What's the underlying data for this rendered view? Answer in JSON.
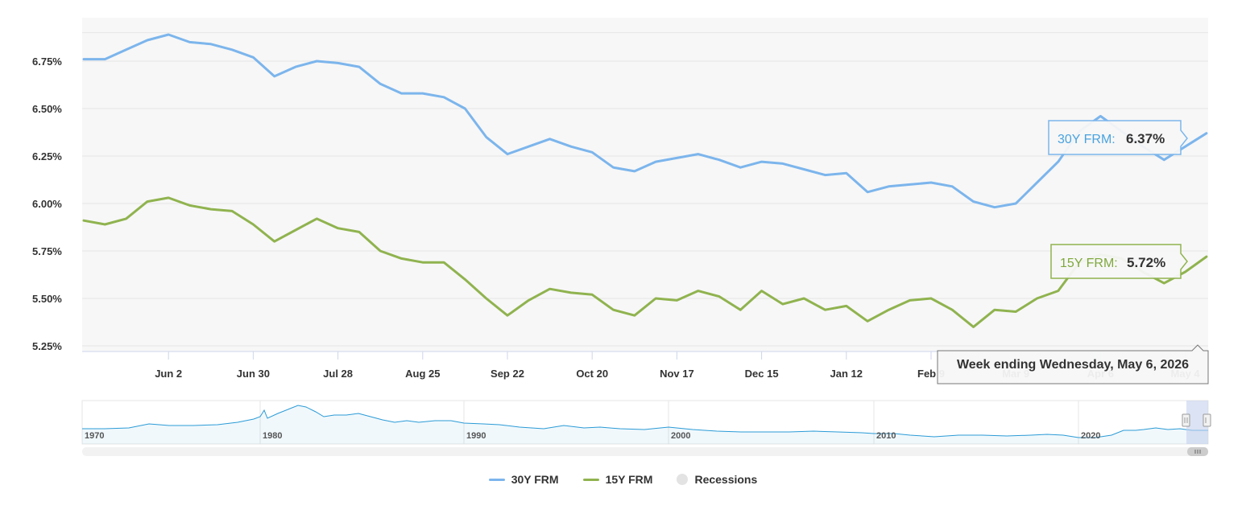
{
  "colors": {
    "series_30y": "#7cb5ec",
    "series_15y": "#90b34f",
    "tip_30y_text": "#4aa3df",
    "tip_15y_text": "#7fa83c",
    "recessions": "#e3e3e3",
    "plot_bg": "#f7f7f7",
    "navigator_line": "#2b9bd6"
  },
  "tooltips": {
    "label_30y": "30Y FRM:",
    "value_30y": "6.37%",
    "label_15y": "15Y FRM:",
    "value_15y": "5.72%",
    "date": "Week ending Wednesday, May 6, 2026"
  },
  "legend": {
    "item_30y": "30Y FRM",
    "item_15y": "15Y FRM",
    "item_recessions": "Recessions"
  },
  "navigator": {
    "year_labels": [
      "1970",
      "1980",
      "1990",
      "2000",
      "2010",
      "2020"
    ]
  },
  "chart_data": {
    "type": "line",
    "title": "",
    "xlabel": "",
    "ylabel": "",
    "ylim": [
      5.25,
      6.9
    ],
    "y_ticks": [
      "5.25%",
      "5.50%",
      "5.75%",
      "6.00%",
      "6.25%",
      "6.50%",
      "6.75%"
    ],
    "x_ticks": [
      "Jun 2",
      "Jun 30",
      "Jul 28",
      "Aug 25",
      "Sep 22",
      "Oct 20",
      "Nov 17",
      "Dec 15",
      "Jan 12",
      "Feb 9",
      "Mar 9",
      "Apr 6",
      "May 4"
    ],
    "x_range_weeks": [
      0,
      53.3
    ],
    "legend_position": "bottom",
    "grid": true,
    "series": [
      {
        "name": "30Y FRM",
        "values": [
          6.76,
          6.76,
          6.81,
          6.86,
          6.89,
          6.85,
          6.84,
          6.81,
          6.77,
          6.67,
          6.72,
          6.75,
          6.74,
          6.72,
          6.63,
          6.58,
          6.58,
          6.56,
          6.5,
          6.35,
          6.26,
          6.3,
          6.34,
          6.3,
          6.27,
          6.19,
          6.17,
          6.22,
          6.24,
          6.26,
          6.23,
          6.19,
          6.22,
          6.21,
          6.18,
          6.15,
          6.16,
          6.06,
          6.09,
          6.1,
          6.11,
          6.09,
          6.01,
          5.98,
          6.0,
          6.11,
          6.22,
          6.38,
          6.46,
          6.38,
          6.3,
          6.23,
          6.3,
          6.37
        ]
      },
      {
        "name": "15Y FRM",
        "values": [
          5.91,
          5.89,
          5.92,
          6.01,
          6.03,
          5.99,
          5.97,
          5.96,
          5.89,
          5.8,
          5.86,
          5.92,
          5.87,
          5.85,
          5.75,
          5.71,
          5.69,
          5.69,
          5.6,
          5.5,
          5.41,
          5.49,
          5.55,
          5.53,
          5.52,
          5.44,
          5.41,
          5.5,
          5.49,
          5.54,
          5.51,
          5.44,
          5.54,
          5.47,
          5.5,
          5.44,
          5.46,
          5.38,
          5.44,
          5.49,
          5.5,
          5.44,
          5.35,
          5.44,
          5.43,
          5.5,
          5.54,
          5.69,
          5.73,
          5.71,
          5.64,
          5.58,
          5.64,
          5.72
        ]
      }
    ]
  }
}
